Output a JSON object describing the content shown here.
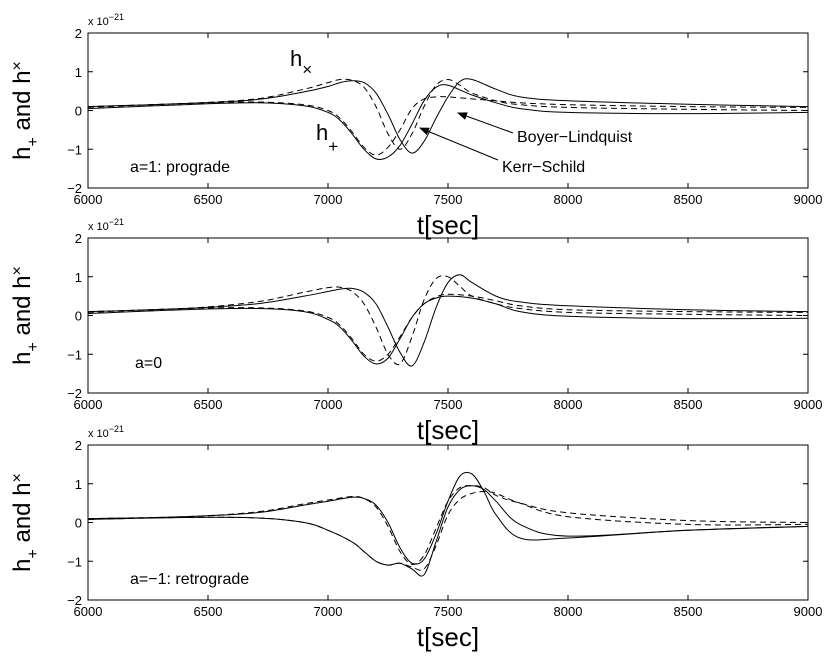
{
  "chart_data": [
    {
      "type": "line",
      "annotation_text": "a=1: prograde",
      "xlabel": "t[sec]",
      "ylabel": {
        "main1": "h",
        "sub1": "+",
        "mid": " and h",
        "sub2": "×"
      },
      "y_exponent": {
        "base": "x 10",
        "power": "−21"
      },
      "xlim": [
        6000,
        9000
      ],
      "ylim": [
        -2,
        2
      ],
      "xticks": [
        "6000",
        "6500",
        "7000",
        "7500",
        "8000",
        "8500",
        "9000"
      ],
      "yticks": [
        "2",
        "1",
        "0",
        "−1",
        "−2"
      ],
      "labels": {
        "hx": {
          "main": "h",
          "sub": "×"
        },
        "hp": {
          "main": "h",
          "sub": "+"
        },
        "bl": "Boyer−Lindquist",
        "ks": "Kerr−Schild"
      },
      "series": [
        {
          "style": "solid",
          "x": [
            6000,
            6400,
            6700,
            6900,
            7000,
            7050,
            7100,
            7150,
            7200,
            7250,
            7300,
            7350,
            7400,
            7450,
            7500,
            7550,
            7600,
            7700,
            7800,
            8000,
            8500,
            9000
          ],
          "y": [
            0.1,
            0.18,
            0.28,
            0.48,
            0.62,
            0.72,
            0.77,
            0.72,
            0.45,
            -0.1,
            -0.75,
            -1.1,
            -0.8,
            -0.2,
            0.35,
            0.75,
            0.8,
            0.55,
            0.35,
            0.25,
            0.16,
            0.1
          ]
        },
        {
          "style": "dashed",
          "x": [
            6000,
            6400,
            6700,
            6900,
            7000,
            7050,
            7100,
            7150,
            7200,
            7250,
            7300,
            7350,
            7400,
            7450,
            7500,
            7550,
            7600,
            7700,
            7800,
            8000,
            8500,
            9000
          ],
          "y": [
            0.1,
            0.18,
            0.3,
            0.55,
            0.72,
            0.8,
            0.78,
            0.6,
            0.1,
            -0.6,
            -1.0,
            -0.6,
            0.1,
            0.65,
            0.8,
            0.65,
            0.45,
            0.25,
            0.15,
            0.08,
            0.03,
            0.0
          ]
        },
        {
          "style": "solid",
          "x": [
            6000,
            6400,
            6700,
            6900,
            7000,
            7050,
            7100,
            7150,
            7200,
            7250,
            7300,
            7350,
            7400,
            7450,
            7500,
            7600,
            7700,
            7800,
            8000,
            8500,
            9000
          ],
          "y": [
            0.05,
            0.15,
            0.2,
            0.12,
            -0.05,
            -0.25,
            -0.6,
            -1.0,
            -1.25,
            -1.2,
            -0.9,
            -0.35,
            0.25,
            0.6,
            0.65,
            0.4,
            0.2,
            0.05,
            -0.05,
            -0.08,
            -0.05
          ]
        },
        {
          "style": "dashed",
          "x": [
            6000,
            6400,
            6700,
            6900,
            7000,
            7050,
            7100,
            7150,
            7200,
            7250,
            7300,
            7350,
            7400,
            7450,
            7500,
            7600,
            7700,
            7800,
            8000,
            8500,
            9000
          ],
          "y": [
            0.08,
            0.18,
            0.22,
            0.15,
            0.0,
            -0.2,
            -0.55,
            -0.95,
            -1.15,
            -0.95,
            -0.5,
            0.05,
            0.3,
            0.35,
            0.35,
            0.3,
            0.25,
            0.2,
            0.15,
            0.1,
            0.08
          ]
        }
      ]
    },
    {
      "type": "line",
      "annotation_text": "a=0",
      "xlabel": "t[sec]",
      "ylabel": {
        "main1": "h",
        "sub1": "+",
        "mid": " and h",
        "sub2": "×"
      },
      "y_exponent": {
        "base": "x 10",
        "power": "−21"
      },
      "xlim": [
        6000,
        9000
      ],
      "ylim": [
        -2,
        2
      ],
      "xticks": [
        "6000",
        "6500",
        "7000",
        "7500",
        "8000",
        "8500",
        "9000"
      ],
      "yticks": [
        "2",
        "1",
        "0",
        "−1",
        "−2"
      ],
      "series": [
        {
          "style": "solid",
          "x": [
            6000,
            6400,
            6700,
            6900,
            7000,
            7050,
            7100,
            7150,
            7200,
            7250,
            7300,
            7350,
            7400,
            7450,
            7500,
            7550,
            7600,
            7700,
            7800,
            8000,
            8500,
            9000
          ],
          "y": [
            0.1,
            0.18,
            0.3,
            0.5,
            0.62,
            0.68,
            0.7,
            0.6,
            0.3,
            -0.3,
            -0.95,
            -1.3,
            -0.7,
            0.2,
            0.85,
            1.05,
            0.85,
            0.5,
            0.35,
            0.25,
            0.15,
            0.1
          ]
        },
        {
          "style": "dashed",
          "x": [
            6000,
            6400,
            6700,
            6900,
            7000,
            7050,
            7100,
            7150,
            7200,
            7250,
            7300,
            7350,
            7400,
            7450,
            7500,
            7550,
            7600,
            7700,
            7800,
            8000,
            8500,
            9000
          ],
          "y": [
            0.1,
            0.18,
            0.35,
            0.6,
            0.72,
            0.73,
            0.62,
            0.3,
            -0.3,
            -1.0,
            -1.25,
            -0.55,
            0.4,
            0.95,
            1.0,
            0.75,
            0.5,
            0.3,
            0.18,
            0.08,
            0.03,
            0.0
          ]
        },
        {
          "style": "solid",
          "x": [
            6000,
            6400,
            6700,
            6900,
            7000,
            7050,
            7100,
            7150,
            7200,
            7250,
            7300,
            7350,
            7400,
            7450,
            7500,
            7600,
            7700,
            7800,
            8000,
            8500,
            9000
          ],
          "y": [
            0.05,
            0.15,
            0.18,
            0.1,
            -0.1,
            -0.3,
            -0.65,
            -1.05,
            -1.25,
            -1.1,
            -0.6,
            -0.05,
            0.3,
            0.45,
            0.5,
            0.45,
            0.3,
            0.1,
            -0.02,
            -0.08,
            -0.07
          ]
        },
        {
          "style": "dashed",
          "x": [
            6000,
            6400,
            6700,
            6900,
            7000,
            7050,
            7100,
            7150,
            7200,
            7250,
            7300,
            7350,
            7400,
            7450,
            7500,
            7600,
            7700,
            7800,
            8000,
            8500,
            9000
          ],
          "y": [
            0.08,
            0.18,
            0.2,
            0.12,
            -0.05,
            -0.25,
            -0.6,
            -1.0,
            -1.18,
            -1.0,
            -0.55,
            -0.05,
            0.3,
            0.48,
            0.55,
            0.5,
            0.38,
            0.25,
            0.15,
            0.1,
            0.08
          ]
        }
      ]
    },
    {
      "type": "line",
      "annotation_text": "a=−1: retrograde",
      "xlabel": "t[sec]",
      "ylabel": {
        "main1": "h",
        "sub1": "+",
        "mid": " and h",
        "sub2": "×"
      },
      "y_exponent": {
        "base": "x 10",
        "power": "−21"
      },
      "xlim": [
        6000,
        9000
      ],
      "ylim": [
        -2,
        2
      ],
      "xticks": [
        "6000",
        "6500",
        "7000",
        "7500",
        "8000",
        "8500",
        "9000"
      ],
      "yticks": [
        "2",
        "1",
        "0",
        "−1",
        "−2"
      ],
      "series": [
        {
          "style": "solid",
          "x": [
            6000,
            6400,
            6700,
            6900,
            7000,
            7100,
            7150,
            7200,
            7250,
            7300,
            7350,
            7400,
            7450,
            7500,
            7550,
            7600,
            7650,
            7700,
            7800,
            8000,
            8500,
            9000
          ],
          "y": [
            0.1,
            0.15,
            0.25,
            0.45,
            0.55,
            0.65,
            0.62,
            0.45,
            0.0,
            -0.65,
            -1.05,
            -0.95,
            -0.3,
            0.55,
            1.2,
            1.25,
            0.8,
            0.2,
            -0.4,
            -0.4,
            -0.2,
            -0.1
          ]
        },
        {
          "style": "dashed",
          "x": [
            6000,
            6400,
            6700,
            6900,
            7000,
            7100,
            7150,
            7200,
            7250,
            7300,
            7350,
            7400,
            7450,
            7500,
            7550,
            7600,
            7650,
            7700,
            7800,
            8000,
            8500,
            9000
          ],
          "y": [
            0.1,
            0.15,
            0.27,
            0.48,
            0.58,
            0.67,
            0.62,
            0.4,
            -0.1,
            -0.75,
            -1.08,
            -0.85,
            -0.15,
            0.55,
            0.9,
            0.95,
            0.9,
            0.7,
            0.5,
            0.25,
            0.05,
            0.0
          ]
        },
        {
          "style": "solid",
          "x": [
            6000,
            6400,
            6700,
            6900,
            7000,
            7100,
            7150,
            7200,
            7250,
            7300,
            7350,
            7400,
            7450,
            7500,
            7550,
            7600,
            7650,
            7700,
            7800,
            8000,
            8500,
            9000
          ],
          "y": [
            0.08,
            0.13,
            0.12,
            0.0,
            -0.2,
            -0.5,
            -0.75,
            -1.0,
            -1.1,
            -1.05,
            -1.2,
            -1.35,
            -0.5,
            0.4,
            0.85,
            0.95,
            0.85,
            0.55,
            -0.05,
            -0.35,
            -0.2,
            -0.1
          ]
        },
        {
          "style": "dashed",
          "x": [
            6000,
            6400,
            6700,
            6900,
            7000,
            7100,
            7150,
            7200,
            7250,
            7300,
            7350,
            7400,
            7450,
            7500,
            7550,
            7600,
            7650,
            7700,
            7800,
            8000,
            8500,
            9000
          ],
          "y": [
            0.08,
            0.13,
            0.12,
            0.0,
            -0.2,
            -0.5,
            -0.75,
            -1.0,
            -1.1,
            -1.05,
            -1.15,
            -1.2,
            -0.6,
            0.2,
            0.6,
            0.75,
            0.8,
            0.75,
            0.5,
            0.15,
            -0.05,
            -0.05
          ]
        }
      ]
    }
  ]
}
